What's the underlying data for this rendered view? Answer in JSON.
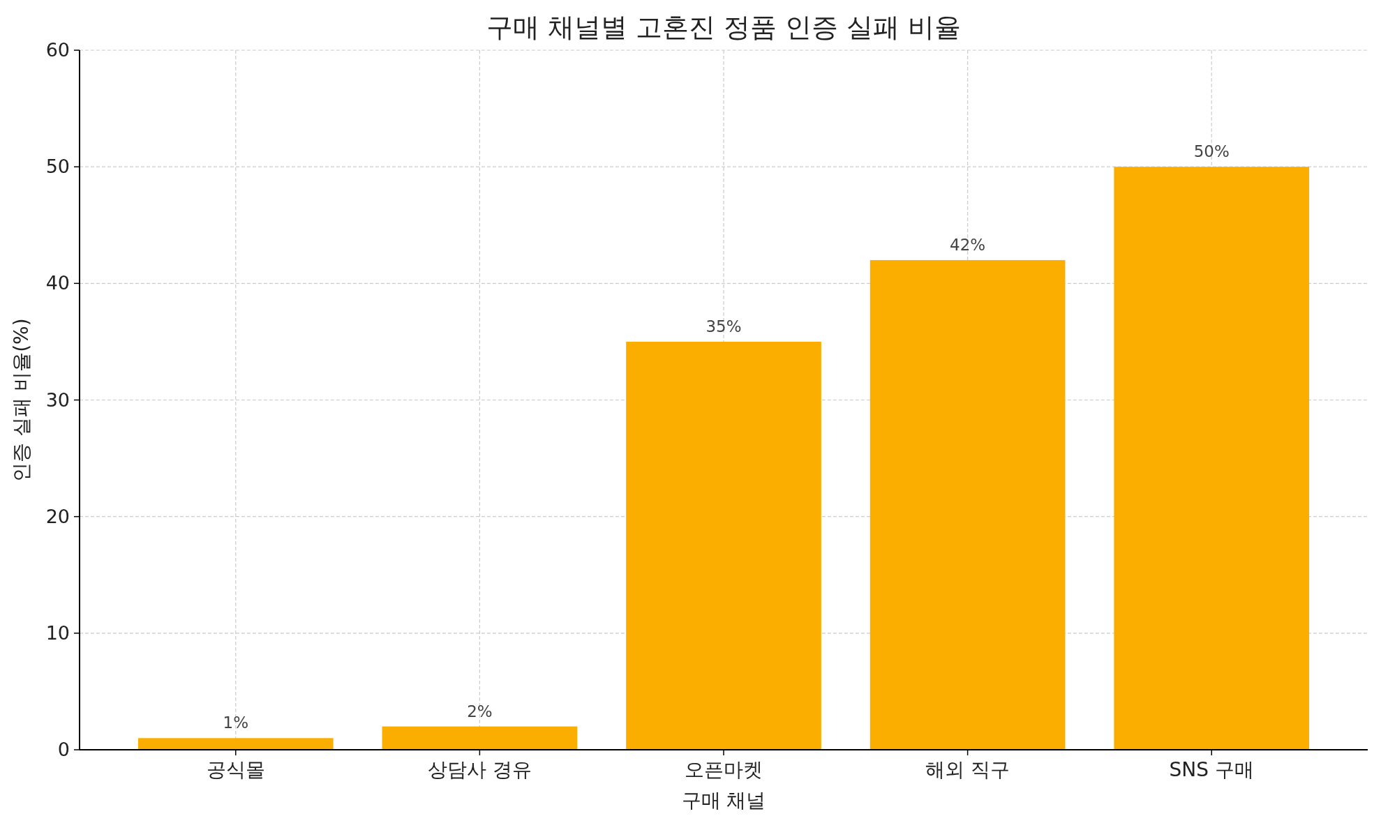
{
  "chart_data": {
    "type": "bar",
    "title": "구매 채널별 고혼진 정품 인증 실패 비율",
    "xlabel": "구매 채널",
    "ylabel": "인증 실패 비율(%)",
    "categories": [
      "공식몰",
      "상담사 경유",
      "오픈마켓",
      "해외 직구",
      "SNS 구매"
    ],
    "values": [
      1,
      2,
      35,
      42,
      50
    ],
    "value_labels": [
      "1%",
      "2%",
      "35%",
      "42%",
      "50%"
    ],
    "color": "#fbae00",
    "ylim": [
      0,
      60
    ],
    "yticks": [
      0,
      10,
      20,
      30,
      40,
      50,
      60
    ],
    "grid": true
  }
}
